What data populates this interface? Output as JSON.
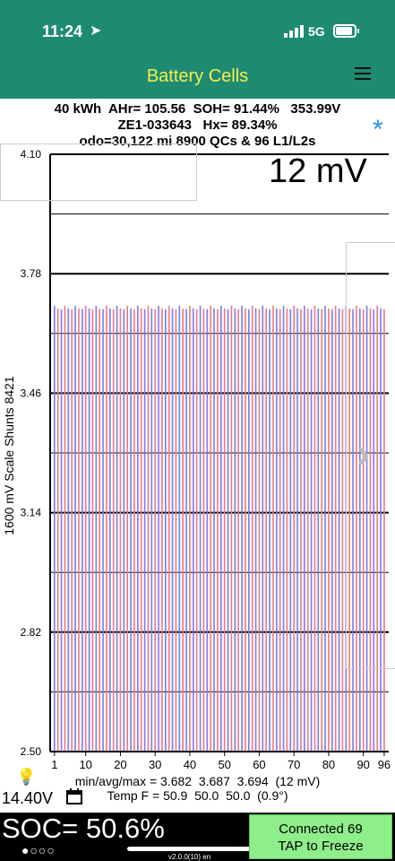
{
  "status": {
    "time": "11:24",
    "network": "5G"
  },
  "nav": {
    "title": "Battery Cells"
  },
  "header": {
    "line1": "40 kWh  AHr= 105.56  SOH= 91.44%   353.99V",
    "line2": "ZE1-033643   Hx= 89.34%",
    "line3": "odo=30,122 mi 8900 QCs & 96 L1/L2s"
  },
  "scale_label": "12 mV",
  "y_axis_label": "1600 mV Scale   Shunts 8421",
  "chart_data": {
    "type": "bar",
    "ylim": [
      2.5,
      4.1
    ],
    "yticks": [
      "4.10",
      "3.78",
      "3.46",
      "3.14",
      "2.82",
      "2.50"
    ],
    "xticks": [
      "1",
      "10",
      "20",
      "30",
      "40",
      "50",
      "60",
      "70",
      "80",
      "90",
      "96"
    ],
    "cell_count": 96,
    "min": 3.682,
    "avg": 3.687,
    "max": 3.694,
    "colors": {
      "odd": "#7b7bf2",
      "even": "#f07a7a"
    }
  },
  "stats": {
    "line1": "min/avg/max = 3.682  3.687  3.694  (12 mV)",
    "line2": "Temp F = 50.9  50.0  50.0  (0.9°)"
  },
  "pack_voltage": "14.40V",
  "soc": "SOC= 50.6%",
  "dots": "●○○○",
  "connect": {
    "line1": "Connected 69",
    "line2": "TAP to Freeze"
  },
  "version": "v2.0.0(10) en"
}
